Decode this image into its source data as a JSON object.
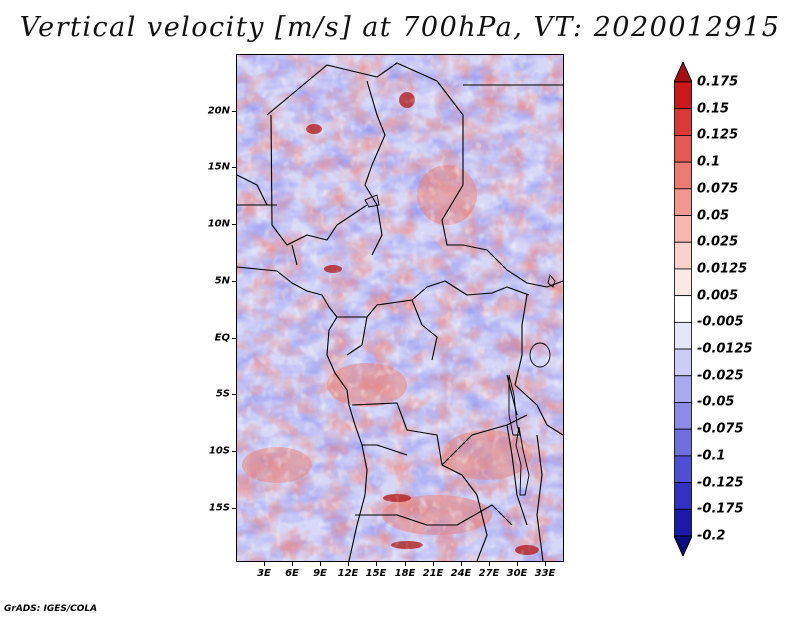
{
  "title": "Vertical velocity [m/s] at 700hPa, VT: 2020012915",
  "credit": "GrADS: IGES/COLA",
  "map": {
    "lon_range": [
      0,
      35
    ],
    "lat_range": [
      -20,
      25
    ],
    "lat_labels": [
      {
        "lat": 20,
        "text": "20N"
      },
      {
        "lat": 15,
        "text": "15N"
      },
      {
        "lat": 10,
        "text": "10N"
      },
      {
        "lat": 5,
        "text": "5N"
      },
      {
        "lat": 0,
        "text": "EQ"
      },
      {
        "lat": -5,
        "text": "5S"
      },
      {
        "lat": -10,
        "text": "10S"
      },
      {
        "lat": -15,
        "text": "15S"
      }
    ],
    "lon_labels": [
      {
        "lon": 3,
        "text": "3E"
      },
      {
        "lon": 6,
        "text": "6E"
      },
      {
        "lon": 9,
        "text": "9E"
      },
      {
        "lon": 12,
        "text": "12E"
      },
      {
        "lon": 15,
        "text": "15E"
      },
      {
        "lon": 18,
        "text": "18E"
      },
      {
        "lon": 21,
        "text": "21E"
      },
      {
        "lon": 24,
        "text": "24E"
      },
      {
        "lon": 27,
        "text": "27E"
      },
      {
        "lon": 30,
        "text": "30E"
      },
      {
        "lon": 33,
        "text": "33E"
      }
    ]
  },
  "colorbar": {
    "levels": [
      "0.175",
      "0.15",
      "0.125",
      "0.1",
      "0.075",
      "0.05",
      "0.025",
      "0.0125",
      "0.005",
      "-0.005",
      "-0.0125",
      "-0.025",
      "-0.05",
      "-0.075",
      "-0.1",
      "-0.125",
      "-0.175",
      "-0.2"
    ],
    "colors": [
      "#a50f15",
      "#cb181d",
      "#d93a38",
      "#e35a52",
      "#ea7a72",
      "#f09890",
      "#f5b6ae",
      "#f9d2cc",
      "#fce8e4",
      "#ffffff",
      "#e6e6fb",
      "#ccccf6",
      "#a9a9ef",
      "#8c8ce8",
      "#6e6edf",
      "#4f4fd3",
      "#3030c2",
      "#1a1aa6",
      "#0d0d80"
    ]
  }
}
